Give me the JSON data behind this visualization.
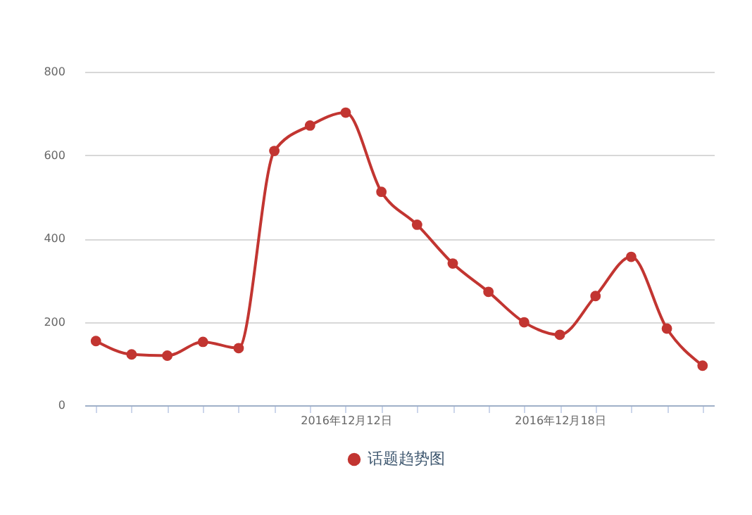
{
  "chart_data": {
    "type": "line",
    "categories": [
      null,
      null,
      null,
      null,
      null,
      null,
      null,
      "2016年12月12日",
      null,
      null,
      null,
      null,
      null,
      "2016年12月18日",
      null,
      null,
      null,
      null
    ],
    "series": [
      {
        "name": "话题趋势图",
        "color": "#c23531",
        "values": [
          154,
          122,
          119,
          152,
          137,
          610,
          671,
          702,
          512,
          433,
          340,
          272,
          199,
          169,
          262,
          356,
          184,
          95
        ]
      }
    ],
    "ylim": [
      0,
      800
    ],
    "yticks": [
      0,
      200,
      400,
      600,
      800
    ],
    "grid": "y",
    "legend": "bottom",
    "marker": "circle",
    "line_style": "solid"
  }
}
